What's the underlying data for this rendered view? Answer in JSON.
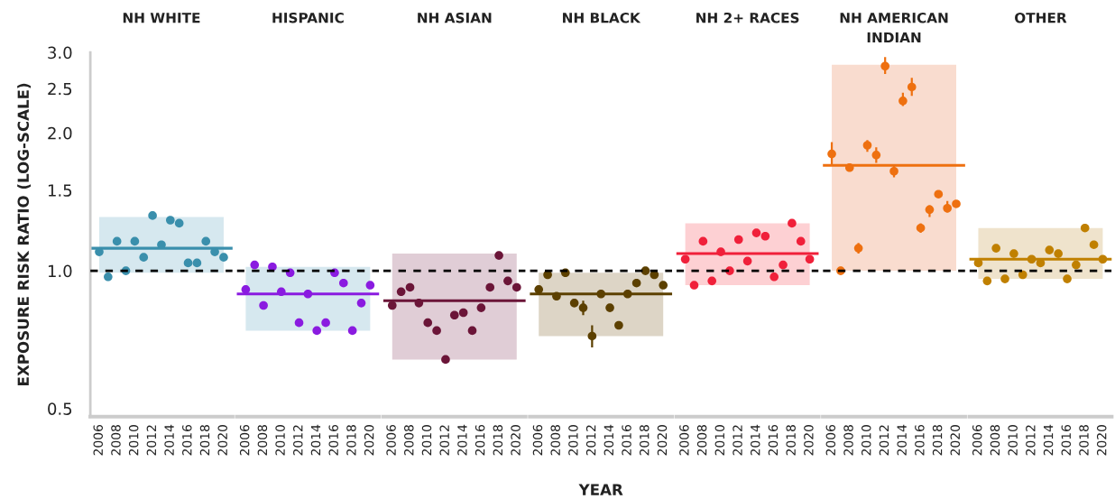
{
  "chart_data": [
    {
      "type": "scatter",
      "title": "NH WHITE",
      "ylabel": "EXPOSURE RISK RATIO (LOG-SCALE)",
      "log": true,
      "x": [
        2006,
        2007,
        2008,
        2009,
        2010,
        2011,
        2012,
        2013,
        2014,
        2015,
        2016,
        2017,
        2018,
        2019,
        2020
      ],
      "xlim": [
        2005,
        2021
      ],
      "xticks": [
        2006,
        2008,
        2010,
        2012,
        2014,
        2016,
        2018,
        2020
      ],
      "ylim": [
        0.48,
        3.0
      ],
      "yticks": [
        0.5,
        {
          "value": 1.0,
          "label": "1.0"
        },
        1.5,
        {
          "value": 2.0,
          "label": "2.0"
        },
        2.5,
        {
          "value": 3.0,
          "label": "3.0"
        }
      ],
      "marker": "circle",
      "series": [
        {
          "color": "#3a8fac",
          "values": [
            1.1,
            0.97,
            1.16,
            1.0,
            1.16,
            1.07,
            1.32,
            1.14,
            1.29,
            1.27,
            1.04,
            1.04,
            1.16,
            1.1,
            1.07
          ]
        }
      ],
      "bands": [
        {
          "axis": "y",
          "from": 0.99,
          "to": 1.31,
          "color": "#d6e8ef"
        }
      ],
      "ref_lines": [
        {
          "axis": "y",
          "value": 1.0,
          "color": "#000000",
          "line_style": "dashed"
        },
        {
          "axis": "y",
          "value": 1.12,
          "color": "#3a8fac",
          "line_style": "solid"
        }
      ]
    },
    {
      "type": "scatter",
      "title": "HISPANIC",
      "log": true,
      "x": [
        2006,
        2007,
        2008,
        2009,
        2010,
        2011,
        2012,
        2013,
        2014,
        2015,
        2016,
        2017,
        2018,
        2019,
        2020
      ],
      "xlim": [
        2005,
        2021
      ],
      "xticks": [
        2006,
        2008,
        2010,
        2012,
        2014,
        2016,
        2018,
        2020
      ],
      "ylim": [
        0.48,
        3.0
      ],
      "yticks": [
        0.5,
        1.0,
        1.5,
        2.0,
        2.5,
        3.0
      ],
      "tick_labels": "x",
      "marker": "circle",
      "series": [
        {
          "color": "#8a1be0",
          "values": [
            0.91,
            1.03,
            0.84,
            1.02,
            0.9,
            0.99,
            0.77,
            0.89,
            0.74,
            0.77,
            0.99,
            0.94,
            0.74,
            0.85,
            0.93
          ]
        }
      ],
      "bands": [
        {
          "axis": "y",
          "from": 0.74,
          "to": 1.02,
          "color": "#d6e8ef"
        }
      ],
      "ref_lines": [
        {
          "axis": "y",
          "value": 1.0,
          "color": "#000000",
          "line_style": "dashed"
        },
        {
          "axis": "y",
          "value": 0.89,
          "color": "#8a1be0",
          "line_style": "solid"
        }
      ]
    },
    {
      "type": "scatter",
      "title": "NH ASIAN",
      "log": true,
      "x": [
        2006,
        2007,
        2008,
        2009,
        2010,
        2011,
        2012,
        2013,
        2014,
        2015,
        2016,
        2017,
        2018,
        2019,
        2020
      ],
      "xlim": [
        2005,
        2021
      ],
      "xticks": [
        2006,
        2008,
        2010,
        2012,
        2014,
        2016,
        2018,
        2020
      ],
      "ylim": [
        0.48,
        3.0
      ],
      "yticks": [
        0.5,
        1.0,
        1.5,
        2.0,
        2.5,
        3.0
      ],
      "tick_labels": "x",
      "marker": "circle",
      "series": [
        {
          "color": "#6b1538",
          "values": [
            0.84,
            0.9,
            0.92,
            0.85,
            0.77,
            0.74,
            0.64,
            0.8,
            0.81,
            0.74,
            0.83,
            0.92,
            1.08,
            0.95,
            0.92
          ]
        }
      ],
      "bands": [
        {
          "axis": "y",
          "from": 0.64,
          "to": 1.09,
          "color": "#e0cdd6"
        }
      ],
      "ref_lines": [
        {
          "axis": "y",
          "value": 1.0,
          "color": "#000000",
          "line_style": "dashed"
        },
        {
          "axis": "y",
          "value": 0.86,
          "color": "#6b1538",
          "line_style": "solid"
        }
      ]
    },
    {
      "type": "scatter",
      "title": "NH BLACK",
      "xlabel": "YEAR",
      "log": true,
      "x": [
        2006,
        2007,
        2008,
        2009,
        2010,
        2011,
        2012,
        2013,
        2014,
        2015,
        2016,
        2017,
        2018,
        2019,
        2020
      ],
      "xlim": [
        2005,
        2021
      ],
      "xticks": [
        2006,
        2008,
        2010,
        2012,
        2014,
        2016,
        2018,
        2020
      ],
      "ylim": [
        0.48,
        3.0
      ],
      "yticks": [
        0.5,
        1.0,
        1.5,
        2.0,
        2.5,
        3.0
      ],
      "tick_labels": "x",
      "marker": "circle",
      "series": [
        {
          "color": "#5c4000",
          "values": [
            0.91,
            0.98,
            0.88,
            0.99,
            0.85,
            0.83,
            0.72,
            0.89,
            0.83,
            0.76,
            0.89,
            0.94,
            1.0,
            0.98,
            0.93
          ],
          "errors": [
            null,
            null,
            null,
            null,
            null,
            0.03,
            0.04,
            null,
            null,
            null,
            null,
            null,
            null,
            null,
            null
          ]
        }
      ],
      "bands": [
        {
          "axis": "y",
          "from": 0.72,
          "to": 0.99,
          "color": "#ddd5c6"
        }
      ],
      "ref_lines": [
        {
          "axis": "y",
          "value": 1.0,
          "color": "#000000",
          "line_style": "dashed"
        },
        {
          "axis": "y",
          "value": 0.89,
          "color": "#5c4000",
          "line_style": "solid"
        }
      ]
    },
    {
      "type": "scatter",
      "title": "NH 2+ RACES",
      "log": true,
      "x": [
        2006,
        2007,
        2008,
        2009,
        2010,
        2011,
        2012,
        2013,
        2014,
        2015,
        2016,
        2017,
        2018,
        2019,
        2020
      ],
      "xlim": [
        2005,
        2021
      ],
      "xticks": [
        2006,
        2008,
        2010,
        2012,
        2014,
        2016,
        2018,
        2020
      ],
      "ylim": [
        0.48,
        3.0
      ],
      "yticks": [
        0.5,
        1.0,
        1.5,
        2.0,
        2.5,
        3.0
      ],
      "tick_labels": "x",
      "marker": "circle",
      "series": [
        {
          "color": "#f0203a",
          "values": [
            1.06,
            0.93,
            1.16,
            0.95,
            1.1,
            1.0,
            1.17,
            1.05,
            1.21,
            1.19,
            0.97,
            1.03,
            1.27,
            1.16,
            1.06
          ]
        }
      ],
      "bands": [
        {
          "axis": "y",
          "from": 0.93,
          "to": 1.27,
          "color": "#fdd0d3"
        }
      ],
      "ref_lines": [
        {
          "axis": "y",
          "value": 1.0,
          "color": "#000000",
          "line_style": "dashed"
        },
        {
          "axis": "y",
          "value": 1.09,
          "color": "#f0203a",
          "line_style": "solid"
        }
      ]
    },
    {
      "type": "scatter",
      "title": "NH AMERICAN\nINDIAN",
      "log": true,
      "x": [
        2006,
        2007,
        2008,
        2009,
        2010,
        2011,
        2012,
        2013,
        2014,
        2015,
        2016,
        2017,
        2018,
        2019,
        2020
      ],
      "xlim": [
        2005,
        2021
      ],
      "xticks": [
        2006,
        2008,
        2010,
        2012,
        2014,
        2016,
        2018,
        2020
      ],
      "ylim": [
        0.48,
        3.0
      ],
      "yticks": [
        0.5,
        1.0,
        1.5,
        2.0,
        2.5,
        3.0
      ],
      "tick_labels": "x",
      "marker": "circle",
      "series": [
        {
          "color": "#ee7010",
          "values": [
            1.8,
            1.0,
            1.68,
            1.12,
            1.88,
            1.79,
            2.8,
            1.65,
            2.35,
            2.52,
            1.24,
            1.36,
            1.47,
            1.37,
            1.4
          ],
          "errors": [
            [
              1.7,
              1.91
            ],
            [
              0.99,
              1.02
            ],
            [
              1.66,
              1.7
            ],
            [
              1.09,
              1.15
            ],
            [
              1.82,
              1.93
            ],
            [
              1.72,
              1.86
            ],
            [
              2.69,
              2.93
            ],
            [
              1.6,
              1.7
            ],
            [
              2.29,
              2.45
            ],
            [
              2.41,
              2.64
            ],
            [
              1.21,
              1.27
            ],
            [
              1.31,
              1.39
            ],
            null,
            [
              1.34,
              1.42
            ],
            null
          ]
        }
      ],
      "bands": [
        {
          "axis": "y",
          "from": 1.0,
          "to": 2.82,
          "color": "#f9dccf"
        }
      ],
      "ref_lines": [
        {
          "axis": "y",
          "value": 1.0,
          "color": "#000000",
          "line_style": "dashed"
        },
        {
          "axis": "y",
          "value": 1.7,
          "color": "#ee7010",
          "line_style": "solid"
        }
      ]
    },
    {
      "type": "scatter",
      "title": "OTHER",
      "log": true,
      "x": [
        2006,
        2007,
        2008,
        2009,
        2010,
        2011,
        2012,
        2013,
        2014,
        2015,
        2016,
        2017,
        2018,
        2019,
        2020
      ],
      "xlim": [
        2005,
        2021
      ],
      "xticks": [
        2006,
        2008,
        2010,
        2012,
        2014,
        2016,
        2018,
        2020
      ],
      "ylim": [
        0.48,
        3.0
      ],
      "yticks": [
        0.5,
        1.0,
        1.5,
        2.0,
        2.5,
        3.0
      ],
      "tick_labels": "x",
      "marker": "circle",
      "series": [
        {
          "color": "#c08000",
          "values": [
            1.04,
            0.95,
            1.12,
            0.96,
            1.09,
            0.98,
            1.06,
            1.04,
            1.11,
            1.09,
            0.96,
            1.03,
            1.24,
            1.14,
            1.06
          ]
        }
      ],
      "bands": [
        {
          "axis": "y",
          "from": 0.96,
          "to": 1.24,
          "color": "#efe3cc"
        }
      ],
      "ref_lines": [
        {
          "axis": "y",
          "value": 1.0,
          "color": "#000000",
          "line_style": "dashed"
        },
        {
          "axis": "y",
          "value": 1.06,
          "color": "#c08000",
          "line_style": "solid"
        }
      ]
    }
  ]
}
